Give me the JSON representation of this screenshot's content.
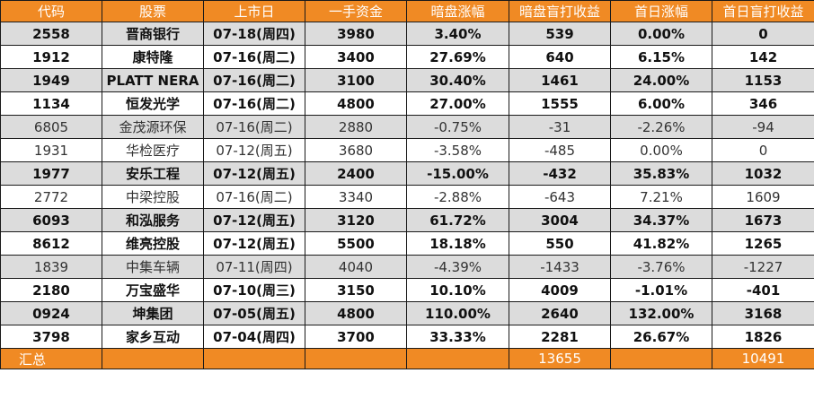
{
  "headers": [
    "代码",
    "股票",
    "上市日",
    "一手资金",
    "暗盘涨幅",
    "暗盘盲打收益",
    "首日涨幅",
    "首日盲打收益"
  ],
  "rows": [
    {
      "code": "2558",
      "name": "晋商银行",
      "date": "07-18(周四)",
      "lot_cash": "3980",
      "grey_change": "3.40%",
      "grey_profit": "539",
      "day1_change": "0.00%",
      "day1_profit": "0",
      "bold": true,
      "shade": "grey"
    },
    {
      "code": "1912",
      "name": "康特隆",
      "date": "07-16(周二)",
      "lot_cash": "3400",
      "grey_change": "27.69%",
      "grey_profit": "640",
      "day1_change": "6.15%",
      "day1_profit": "142",
      "bold": true,
      "shade": "white"
    },
    {
      "code": "1949",
      "name": "PLATT NERA",
      "date": "07-16(周二)",
      "lot_cash": "3100",
      "grey_change": "30.40%",
      "grey_profit": "1461",
      "day1_change": "24.00%",
      "day1_profit": "1153",
      "bold": true,
      "shade": "grey"
    },
    {
      "code": "1134",
      "name": "恒发光学",
      "date": "07-16(周二)",
      "lot_cash": "4800",
      "grey_change": "27.00%",
      "grey_profit": "1555",
      "day1_change": "6.00%",
      "day1_profit": "346",
      "bold": true,
      "shade": "white"
    },
    {
      "code": "6805",
      "name": "金茂源环保",
      "date": "07-16(周二)",
      "lot_cash": "2880",
      "grey_change": "-0.75%",
      "grey_profit": "-31",
      "day1_change": "-2.26%",
      "day1_profit": "-94",
      "bold": false,
      "shade": "grey"
    },
    {
      "code": "1931",
      "name": "华检医疗",
      "date": "07-12(周五)",
      "lot_cash": "3680",
      "grey_change": "-3.58%",
      "grey_profit": "-485",
      "day1_change": "0.00%",
      "day1_profit": "0",
      "bold": false,
      "shade": "white"
    },
    {
      "code": "1977",
      "name": "安乐工程",
      "date": "07-12(周五)",
      "lot_cash": "2400",
      "grey_change": "-15.00%",
      "grey_profit": "-432",
      "day1_change": "35.83%",
      "day1_profit": "1032",
      "bold": true,
      "shade": "grey"
    },
    {
      "code": "2772",
      "name": "中梁控股",
      "date": "07-16(周二)",
      "lot_cash": "3340",
      "grey_change": "-2.88%",
      "grey_profit": "-643",
      "day1_change": "7.21%",
      "day1_profit": "1609",
      "bold": false,
      "shade": "white"
    },
    {
      "code": "6093",
      "name": "和泓服务",
      "date": "07-12(周五)",
      "lot_cash": "3120",
      "grey_change": "61.72%",
      "grey_profit": "3004",
      "day1_change": "34.37%",
      "day1_profit": "1673",
      "bold": true,
      "shade": "grey"
    },
    {
      "code": "8612",
      "name": "维亮控股",
      "date": "07-12(周五)",
      "lot_cash": "5500",
      "grey_change": "18.18%",
      "grey_profit": "550",
      "day1_change": "41.82%",
      "day1_profit": "1265",
      "bold": true,
      "shade": "white"
    },
    {
      "code": "1839",
      "name": "中集车辆",
      "date": "07-11(周四)",
      "lot_cash": "4040",
      "grey_change": "-4.39%",
      "grey_profit": "-1433",
      "day1_change": "-3.76%",
      "day1_profit": "-1227",
      "bold": false,
      "shade": "grey"
    },
    {
      "code": "2180",
      "name": "万宝盛华",
      "date": "07-10(周三)",
      "lot_cash": "3150",
      "grey_change": "10.10%",
      "grey_profit": "4009",
      "day1_change": "-1.01%",
      "day1_profit": "-401",
      "bold": true,
      "shade": "white"
    },
    {
      "code": "0924",
      "name": "坤集团",
      "date": "07-05(周五)",
      "lot_cash": "4800",
      "grey_change": "110.00%",
      "grey_profit": "2640",
      "day1_change": "132.00%",
      "day1_profit": "3168",
      "bold": true,
      "shade": "grey"
    },
    {
      "code": "3798",
      "name": "家乡互动",
      "date": "07-04(周四)",
      "lot_cash": "3700",
      "grey_change": "33.33%",
      "grey_profit": "2281",
      "day1_change": "26.67%",
      "day1_profit": "1826",
      "bold": true,
      "shade": "white"
    }
  ],
  "total": {
    "label": "汇总",
    "grey_profit": "13655",
    "day1_profit": "10491"
  },
  "colors": {
    "header_bg": "#f08a24",
    "header_text": "#ffffff",
    "row_shade": "#dcdcdc",
    "row_plain": "#ffffff"
  }
}
